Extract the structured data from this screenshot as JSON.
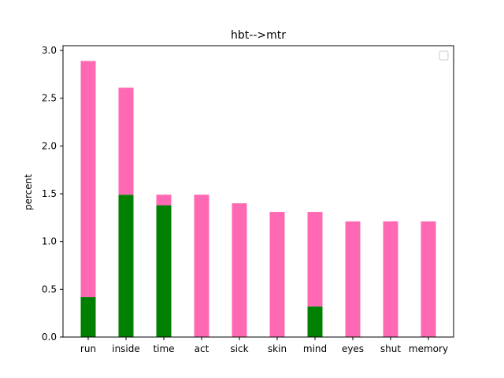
{
  "chart_data": {
    "type": "bar",
    "stacked": true,
    "title": "hbt-->mtr",
    "xlabel": "",
    "ylabel": "percent",
    "ylim": [
      0,
      3.05
    ],
    "yticks": [
      "0.0",
      "0.5",
      "1.0",
      "1.5",
      "2.0",
      "2.5",
      "3.0"
    ],
    "categories": [
      "run",
      "inside",
      "time",
      "act",
      "sick",
      "skin",
      "mind",
      "eyes",
      "shut",
      "memory"
    ],
    "series": [
      {
        "color": "#008000",
        "values": [
          0.42,
          1.49,
          1.38,
          0,
          0,
          0,
          0.32,
          0,
          0,
          0
        ]
      },
      {
        "color": "#ff69b4",
        "values": [
          2.47,
          1.12,
          0.11,
          1.49,
          1.4,
          1.31,
          0.99,
          1.21,
          1.21,
          1.21
        ]
      }
    ],
    "legend": {
      "placement": "top-right",
      "entries": []
    },
    "grid": false
  }
}
